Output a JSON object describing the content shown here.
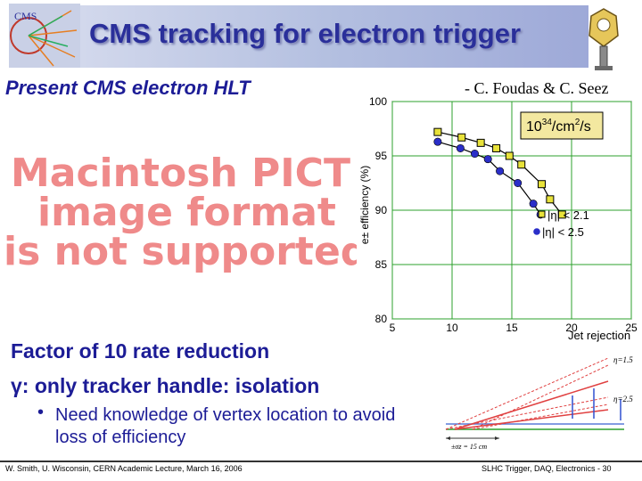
{
  "title": "CMS tracking for electron trigger",
  "subtitle": "Present CMS electron HLT",
  "credit": "- C. Foudas & C. Seez",
  "pict_placeholder": {
    "line1": "Macintosh PICT",
    "line2": "image format",
    "line3": "is not supported"
  },
  "bullets": {
    "rate": "Factor of 10 rate reduction",
    "gamma": "γ: only tracker handle: isolation",
    "vertex": "Need knowledge of vertex location to avoid loss of efficiency"
  },
  "geometry_labels": {
    "eta15": "η=1.5",
    "eta25": "η=2.5",
    "zvtx": "±σz = 15 cm"
  },
  "footer": {
    "left": "W. Smith, U. Wisconsin, CERN Academic Lecture, March 16, 2006",
    "right": "SLHC Trigger, DAQ, Electronics - 30"
  },
  "colors": {
    "title": "#2a2f9a",
    "text": "#1c1c96",
    "series1": "#e8e23a",
    "series2": "#2a2ec8",
    "grid": "#2ca02c"
  },
  "chart_data": {
    "type": "line",
    "xlabel": "Jet rejection",
    "ylabel": "e± efficiency (%)",
    "xlim": [
      5,
      25
    ],
    "ylim": [
      80,
      100
    ],
    "xticks": [
      5,
      10,
      15,
      20,
      25
    ],
    "yticks": [
      80,
      85,
      90,
      95,
      100
    ],
    "annotation": "10^34/cm^2/s",
    "series": [
      {
        "name": "|η| < 2.1",
        "marker": "square",
        "x": [
          8.8,
          10.8,
          12.4,
          13.7,
          14.8,
          15.8,
          17.5,
          18.2,
          19.2
        ],
        "y": [
          97.2,
          96.7,
          96.2,
          95.7,
          95.0,
          94.2,
          92.4,
          91.0,
          89.6
        ]
      },
      {
        "name": "|η| < 2.5",
        "marker": "circle",
        "x": [
          8.8,
          10.7,
          11.9,
          13.0,
          14.0,
          15.5,
          16.8,
          17.4
        ],
        "y": [
          96.3,
          95.7,
          95.2,
          94.7,
          93.6,
          92.5,
          90.6,
          89.6
        ]
      }
    ],
    "legend": [
      "|η| < 2.1",
      "|η| < 2.5"
    ]
  }
}
